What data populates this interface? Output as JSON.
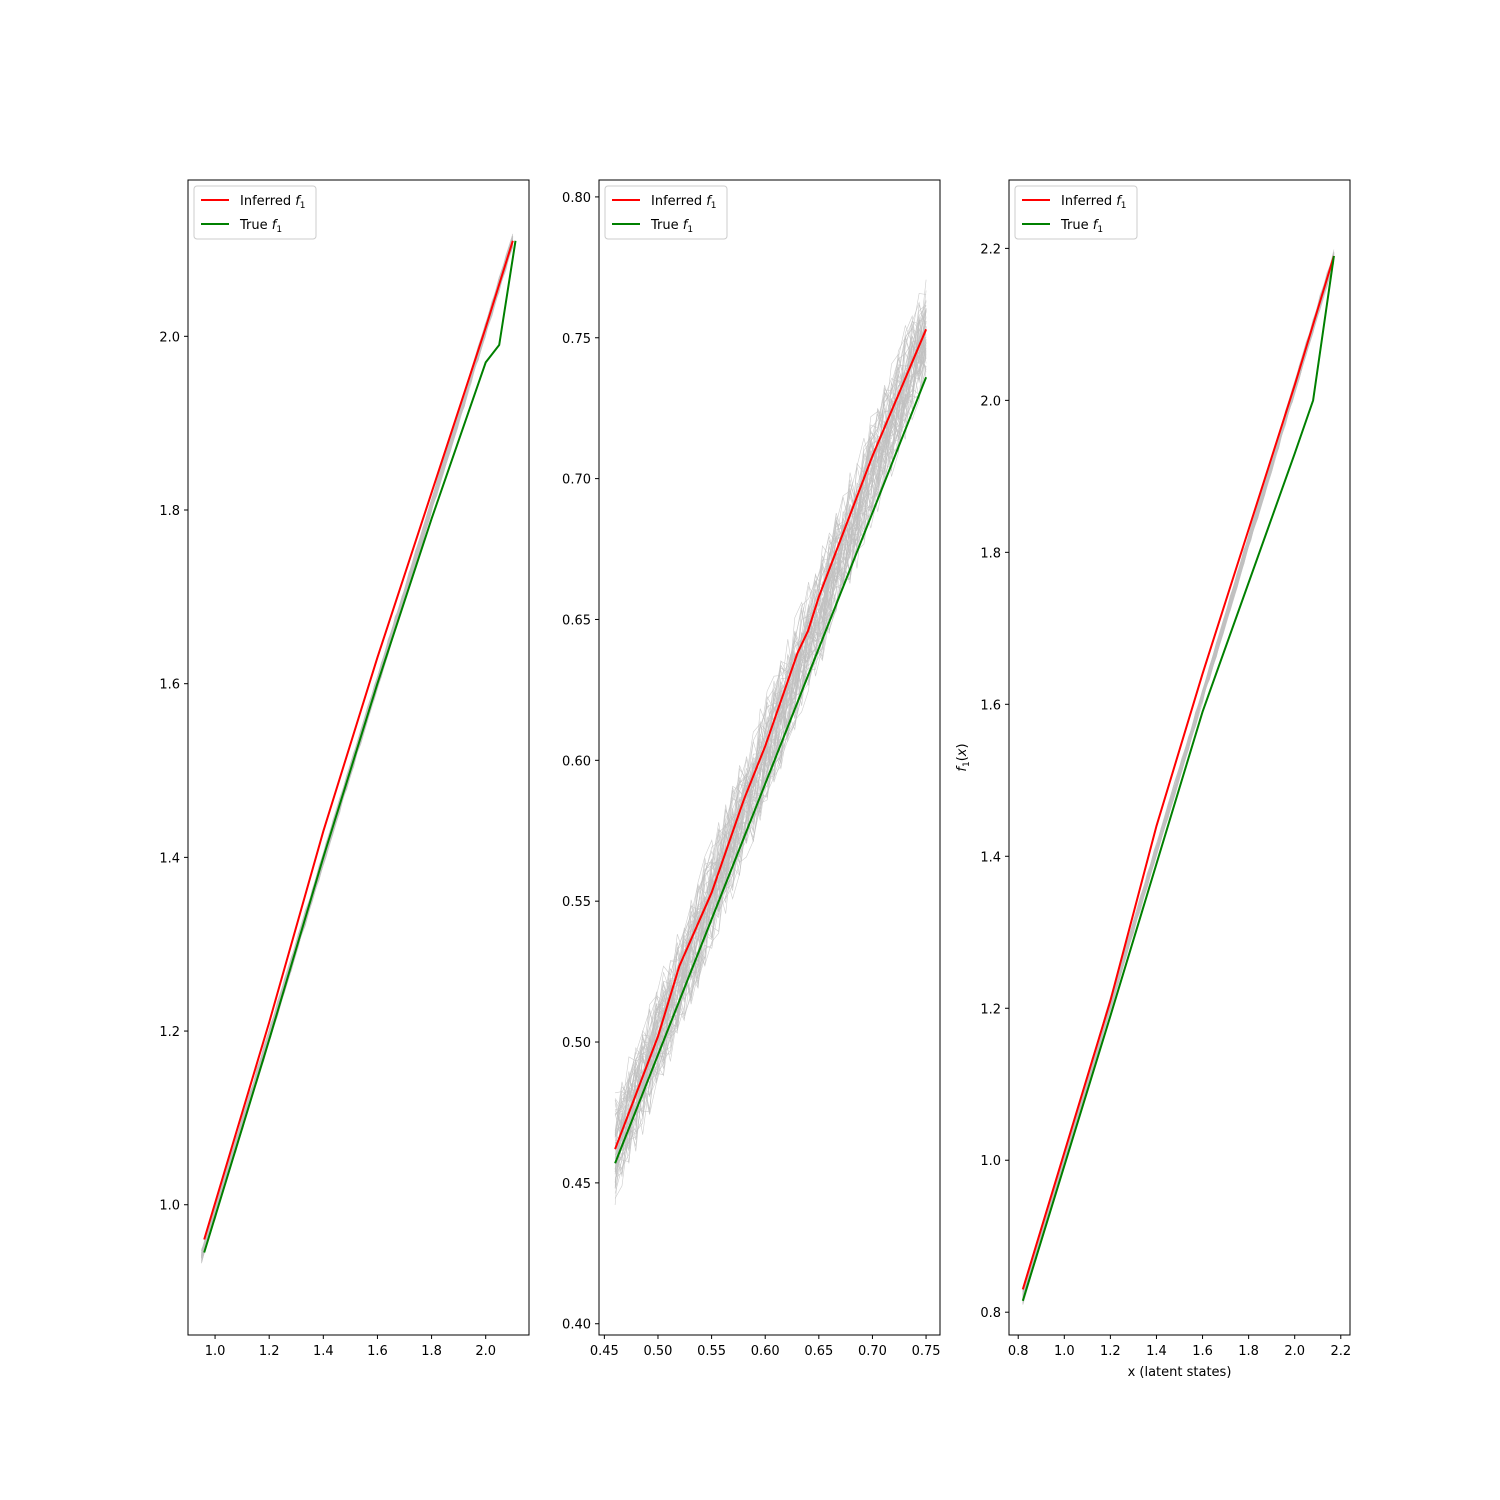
{
  "chart_data": [
    {
      "type": "line",
      "panel": "left",
      "title": "",
      "xlabel": "",
      "ylabel": "",
      "xlim": [
        0.9,
        2.16
      ],
      "ylim": [
        0.85,
        2.18
      ],
      "xticks": [
        1.0,
        1.2,
        1.4,
        1.6,
        1.8,
        2.0
      ],
      "xtick_labels": [
        "1.0",
        "1.2",
        "1.4",
        "1.6",
        "1.8",
        "2.0"
      ],
      "yticks": [
        1.0,
        1.2,
        1.4,
        1.6,
        1.8,
        2.0
      ],
      "ytick_labels": [
        "1.0",
        "1.2",
        "1.4",
        "1.6",
        "1.8",
        "2.0"
      ],
      "legend_position": "top-left",
      "series": [
        {
          "name": "Inferred f1",
          "legend_text": "Inferred",
          "color": "#ff0000",
          "x": [
            0.96,
            1.2,
            1.4,
            1.6,
            1.8,
            2.0,
            2.1
          ],
          "y": [
            0.96,
            1.21,
            1.43,
            1.63,
            1.82,
            2.01,
            2.11
          ]
        },
        {
          "name": "True f1",
          "legend_text": "True",
          "color": "#008000",
          "x": [
            0.96,
            1.2,
            1.4,
            1.6,
            1.8,
            2.0,
            2.05,
            2.11
          ],
          "y": [
            0.945,
            1.19,
            1.4,
            1.6,
            1.79,
            1.97,
            1.99,
            2.11
          ]
        },
        {
          "name": "posterior samples",
          "color": "#c0c0c0",
          "spread": 0.008,
          "count": 60,
          "x": [
            0.95,
            2.1
          ],
          "y": [
            0.94,
            2.11
          ]
        }
      ]
    },
    {
      "type": "line",
      "panel": "middle",
      "title": "",
      "xlabel": "",
      "ylabel": "",
      "xlim": [
        0.445,
        0.763
      ],
      "ylim": [
        0.396,
        0.806
      ],
      "xticks": [
        0.45,
        0.5,
        0.55,
        0.6,
        0.65,
        0.7,
        0.75
      ],
      "xtick_labels": [
        "0.45",
        "0.50",
        "0.55",
        "0.60",
        "0.65",
        "0.70",
        "0.75"
      ],
      "yticks": [
        0.4,
        0.45,
        0.5,
        0.55,
        0.6,
        0.65,
        0.7,
        0.75,
        0.8
      ],
      "ytick_labels": [
        "0.40",
        "0.45",
        "0.50",
        "0.55",
        "0.60",
        "0.65",
        "0.70",
        "0.75",
        "0.80"
      ],
      "legend_position": "top-left",
      "series": [
        {
          "name": "Inferred f1",
          "legend_text": "Inferred",
          "color": "#ff0000",
          "x": [
            0.46,
            0.5,
            0.52,
            0.55,
            0.58,
            0.6,
            0.62,
            0.63,
            0.64,
            0.65,
            0.68,
            0.7,
            0.75
          ],
          "y": [
            0.462,
            0.502,
            0.527,
            0.553,
            0.586,
            0.605,
            0.627,
            0.638,
            0.646,
            0.658,
            0.688,
            0.708,
            0.753
          ]
        },
        {
          "name": "True f1",
          "legend_text": "True",
          "color": "#008000",
          "x": [
            0.46,
            0.75
          ],
          "y": [
            0.457,
            0.736
          ]
        },
        {
          "name": "posterior samples",
          "color": "#c0c0c0",
          "spread": 0.018,
          "count": 60,
          "x": [
            0.46,
            0.75
          ],
          "y": [
            0.462,
            0.753
          ]
        }
      ]
    },
    {
      "type": "line",
      "panel": "right",
      "title": "",
      "xlabel": "x (latent states)",
      "ylabel": "f1(x)",
      "xlim": [
        0.76,
        2.24
      ],
      "ylim": [
        0.77,
        2.29
      ],
      "xticks": [
        0.8,
        1.0,
        1.2,
        1.4,
        1.6,
        1.8,
        2.0,
        2.2
      ],
      "xtick_labels": [
        "0.8",
        "1.0",
        "1.2",
        "1.4",
        "1.6",
        "1.8",
        "2.0",
        "2.2"
      ],
      "yticks": [
        0.8,
        1.0,
        1.2,
        1.4,
        1.6,
        1.8,
        2.0,
        2.2
      ],
      "ytick_labels": [
        "0.8",
        "1.0",
        "1.2",
        "1.4",
        "1.6",
        "1.8",
        "2.0",
        "2.2"
      ],
      "legend_position": "top-left",
      "series": [
        {
          "name": "Inferred f1",
          "legend_text": "Inferred",
          "color": "#ff0000",
          "x": [
            0.82,
            1.2,
            1.4,
            1.6,
            1.8,
            2.0,
            2.17
          ],
          "y": [
            0.83,
            1.21,
            1.44,
            1.64,
            1.83,
            2.02,
            2.19
          ]
        },
        {
          "name": "True f1",
          "legend_text": "True",
          "color": "#008000",
          "x": [
            0.82,
            1.2,
            1.6,
            2.0,
            2.08,
            2.17
          ],
          "y": [
            0.815,
            1.19,
            1.59,
            1.93,
            2.0,
            2.19
          ]
        },
        {
          "name": "posterior samples",
          "color": "#c0c0c0",
          "spread": 0.009,
          "count": 60,
          "x": [
            0.82,
            2.17
          ],
          "y": [
            0.82,
            2.19
          ]
        }
      ]
    }
  ]
}
